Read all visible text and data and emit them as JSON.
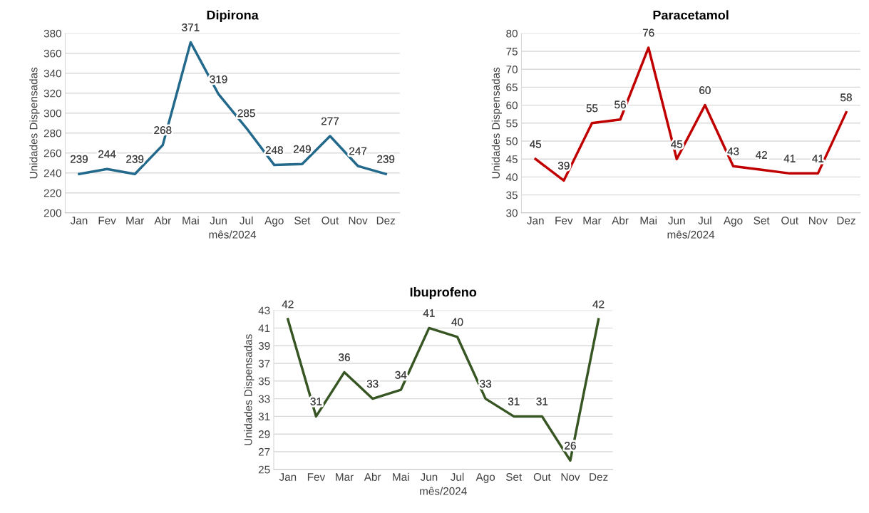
{
  "chart_data": [
    {
      "type": "line",
      "title": "Dipirona",
      "xlabel": "mês/2024",
      "ylabel": "Unidades Dispensadas",
      "categories": [
        "Jan",
        "Fev",
        "Mar",
        "Abr",
        "Mai",
        "Jun",
        "Jul",
        "Ago",
        "Set",
        "Out",
        "Nov",
        "Dez"
      ],
      "series": [
        {
          "color": "#22698c",
          "values": [
            239,
            244,
            239,
            268,
            371,
            319,
            285,
            248,
            249,
            277,
            247,
            239
          ]
        }
      ],
      "ylim": [
        200,
        380
      ],
      "yticks": [
        200,
        220,
        240,
        260,
        280,
        300,
        320,
        340,
        360,
        380
      ],
      "grid": "y",
      "data_labels": true,
      "marker": "none",
      "line_style": "solid"
    },
    {
      "type": "line",
      "title": "Paracetamol",
      "xlabel": "mês/2024",
      "ylabel": "Unidades Dispensadas",
      "categories": [
        "Jan",
        "Fev",
        "Mar",
        "Abr",
        "Mai",
        "Jun",
        "Jul",
        "Ago",
        "Set",
        "Out",
        "Nov",
        "Dez"
      ],
      "series": [
        {
          "color": "#c00000",
          "values": [
            45,
            39,
            55,
            56,
            76,
            45,
            60,
            43,
            42,
            41,
            41,
            58
          ]
        }
      ],
      "ylim": [
        30,
        80
      ],
      "yticks": [
        30,
        35,
        40,
        45,
        50,
        55,
        60,
        65,
        70,
        75,
        80
      ],
      "grid": "y",
      "data_labels": true,
      "marker": "none",
      "line_style": "solid"
    },
    {
      "type": "line",
      "title": "Ibuprofeno",
      "xlabel": "mês/2024",
      "ylabel": "Unidades Dispensadas",
      "categories": [
        "Jan",
        "Fev",
        "Mar",
        "Abr",
        "Mai",
        "Jun",
        "Jul",
        "Ago",
        "Set",
        "Out",
        "Nov",
        "Dez"
      ],
      "series": [
        {
          "color": "#375623",
          "values": [
            42,
            31,
            36,
            33,
            34,
            41,
            40,
            33,
            31,
            31,
            26,
            42
          ]
        }
      ],
      "ylim": [
        25,
        43
      ],
      "yticks": [
        25,
        27,
        29,
        31,
        33,
        35,
        37,
        39,
        41,
        43
      ],
      "grid": "y",
      "data_labels": true,
      "marker": "none",
      "line_style": "solid"
    }
  ]
}
